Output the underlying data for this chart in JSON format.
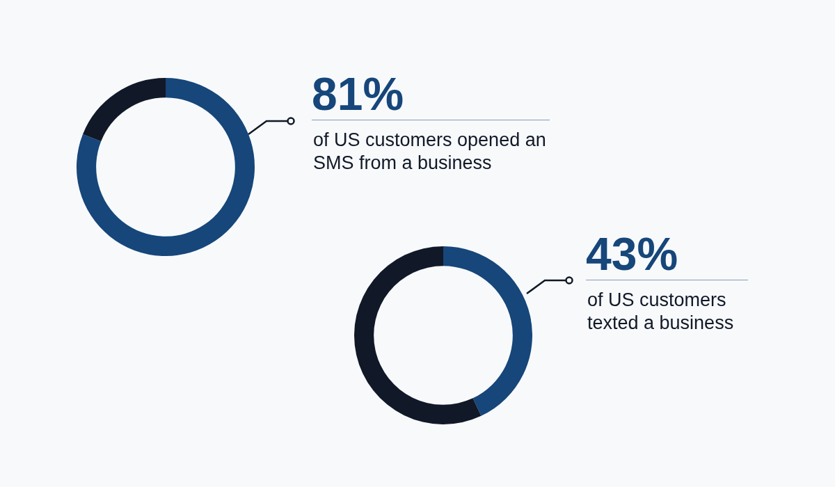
{
  "chart_data": [
    {
      "type": "donut",
      "categories": [
        null,
        null
      ],
      "values": [
        81,
        19
      ],
      "colors": [
        "#16467a",
        "#111827"
      ],
      "value_labels": [
        "81%",
        null
      ],
      "annotations": [
        "of US customers opened an SMS from a business"
      ]
    },
    {
      "type": "donut",
      "categories": [
        null,
        null
      ],
      "values": [
        43,
        57
      ],
      "colors": [
        "#16467a",
        "#111827"
      ],
      "value_labels": [
        "43%",
        null
      ],
      "annotations": [
        "of US customers texted a business"
      ]
    }
  ]
}
